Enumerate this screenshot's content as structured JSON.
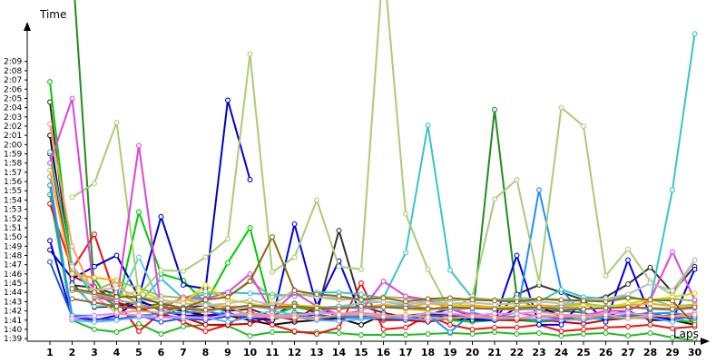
{
  "chart_data": {
    "type": "line",
    "title": "",
    "xlabel": "Laps",
    "ylabel": "Time",
    "x": [
      1,
      2,
      3,
      4,
      5,
      6,
      7,
      8,
      9,
      10,
      11,
      12,
      13,
      14,
      15,
      16,
      17,
      18,
      19,
      20,
      21,
      22,
      23,
      24,
      25,
      26,
      27,
      28,
      29,
      30
    ],
    "x_ticks": [
      "1",
      "2",
      "3",
      "4",
      "5",
      "6",
      "7",
      "8",
      "9",
      "10",
      "11",
      "12",
      "13",
      "14",
      "15",
      "16",
      "17",
      "18",
      "19",
      "20",
      "21",
      "22",
      "23",
      "24",
      "25",
      "26",
      "27",
      "28",
      "29",
      "30"
    ],
    "y_unit": "seconds",
    "ylim": [
      98.5,
      132
    ],
    "y_ticks": [
      {
        "v": 99,
        "label": "1:39"
      },
      {
        "v": 100,
        "label": "1:40"
      },
      {
        "v": 101,
        "label": "1:41"
      },
      {
        "v": 102,
        "label": "1:42"
      },
      {
        "v": 103,
        "label": "1:43"
      },
      {
        "v": 104,
        "label": "1:44"
      },
      {
        "v": 105,
        "label": "1:45"
      },
      {
        "v": 106,
        "label": "1:46"
      },
      {
        "v": 107,
        "label": "1:47"
      },
      {
        "v": 108,
        "label": "1:48"
      },
      {
        "v": 109,
        "label": "1:49"
      },
      {
        "v": 110,
        "label": "1:50"
      },
      {
        "v": 111,
        "label": "1:51"
      },
      {
        "v": 112,
        "label": "1:52"
      },
      {
        "v": 113,
        "label": "1:53"
      },
      {
        "v": 114,
        "label": "1:54"
      },
      {
        "v": 115,
        "label": "1:55"
      },
      {
        "v": 116,
        "label": "1:56"
      },
      {
        "v": 117,
        "label": "1:57"
      },
      {
        "v": 118,
        "label": "1:58"
      },
      {
        "v": 119,
        "label": "1:59"
      },
      {
        "v": 120,
        "label": "2:00"
      },
      {
        "v": 121,
        "label": "2:01"
      },
      {
        "v": 122,
        "label": "2:02"
      },
      {
        "v": 123,
        "label": "2:03"
      },
      {
        "v": 124,
        "label": "2:04"
      },
      {
        "v": 125,
        "label": "2:05"
      },
      {
        "v": 126,
        "label": "2:06"
      },
      {
        "v": 127,
        "label": "2:07"
      },
      {
        "v": 128,
        "label": "2:08"
      },
      {
        "v": 129,
        "label": "2:09"
      }
    ],
    "grid": false,
    "legend": "none",
    "series": [
      {
        "color": "#228b22",
        "values": [
          null,
          140,
          104,
          102.5,
          102.3,
          102.8,
          101.2,
          102,
          102.4,
          101.5,
          101,
          101.8,
          101.6,
          101.2,
          101.5,
          101.3,
          101.2,
          101.7,
          101.5,
          101,
          123.8,
          103.5,
          102,
          102,
          101.8,
          101,
          101.2,
          101.3,
          101.6,
          101.5
        ]
      },
      {
        "color": "#333333",
        "values": [
          124.6,
          104.8,
          104.5,
          103.8,
          103.4,
          102.8,
          102.3,
          102.6,
          102,
          102.2,
          101.4,
          102.8,
          101.7,
          110.7,
          102.5,
          101.8,
          101.3,
          101.6,
          102.2,
          101.5,
          101.2,
          103.8,
          104.8,
          104,
          103.2,
          103.5,
          104.9,
          106.7,
          104,
          106.8
        ]
      },
      {
        "color": "#111111",
        "values": [
          121,
          105,
          102.4,
          102.5,
          103,
          102.3,
          102,
          101.5,
          101.5,
          101,
          100.5,
          100.8,
          101,
          101.2,
          100.5,
          101.6,
          101.3,
          101.8,
          101,
          101.1,
          101,
          102.3,
          102.5,
          101.4,
          101,
          101.5,
          102,
          101,
          101,
          100.5
        ]
      },
      {
        "color": "#00cc00",
        "values": [
          126.8,
          106.2,
          105.5,
          102,
          112.7,
          106,
          105.3,
          102.8,
          107.2,
          111,
          101.5,
          102.4,
          102,
          101.6,
          101.3,
          101,
          101.2,
          101.6,
          101,
          100.8,
          101,
          101,
          100.8,
          101,
          101.2,
          101.1,
          101.5,
          101.4,
          101,
          100.8
        ]
      },
      {
        "color": "#22bb22",
        "values": [
          114.6,
          101,
          100,
          99.7,
          100.6,
          99.5,
          100.3,
          100.5,
          100.4,
          99.3,
          99.7,
          99.7,
          99.7,
          99.6,
          99.4,
          99.4,
          99.4,
          99.5,
          99.6,
          99.5,
          99.7,
          99.5,
          99.6,
          99.3,
          99.5,
          99.6,
          99.3,
          99.6,
          99.1,
          98.8
        ]
      },
      {
        "color": "#ee1111",
        "values": [
          113.6,
          106.5,
          110.3,
          103.2,
          99.8,
          101.8,
          100.8,
          99.8,
          100.5,
          102,
          100.5,
          99.8,
          99.5,
          100.2,
          105,
          100,
          100.2,
          101.5,
          100.5,
          100,
          100.2,
          100.2,
          100.5,
          99.8,
          100,
          100.2,
          100.3,
          100.5,
          100.1,
          100.3
        ]
      },
      {
        "color": "#cc0000",
        "values": [
          119,
          105.8,
          104.6,
          102.9,
          102.3,
          101.5,
          101.3,
          100.5,
          100.5,
          100.6,
          101.5,
          101,
          102.5,
          101.3,
          101.3,
          101,
          101,
          100.8,
          101.2,
          101.5,
          101,
          101,
          101.1,
          100.8,
          100.6,
          101,
          101.3,
          101.2,
          101.2,
          101.3
        ]
      },
      {
        "color": "#0000cc",
        "values": [
          108.6,
          105.5,
          106.8,
          108,
          103.5,
          112.2,
          104.8,
          104.4,
          124.8,
          116.2,
          null,
          null,
          null,
          null,
          null,
          null,
          null,
          null,
          null,
          null,
          null,
          null,
          null,
          null,
          null,
          null,
          null,
          null,
          null,
          null
        ]
      },
      {
        "color": "#0000ee",
        "values": [
          109.6,
          101.3,
          101,
          101.5,
          103.2,
          102,
          101.5,
          101.5,
          101.8,
          101.2,
          101,
          111.4,
          102.5,
          107.4,
          101.5,
          101.2,
          101.5,
          101.7,
          101.5,
          101,
          101,
          108,
          100.5,
          100.5,
          103.2,
          100.8,
          107.5,
          101.5,
          101,
          106.5
        ]
      },
      {
        "color": "#2255cc",
        "values": [
          107.3,
          101.4,
          101.1,
          101.1,
          101.5,
          100.8,
          101.2,
          101,
          101.4,
          101.6,
          101.3,
          101.2,
          101.6,
          101.3,
          101.3,
          101.3,
          101,
          101.5,
          101.5,
          101.3,
          101.3,
          101.2,
          101,
          101.2,
          101,
          101.4,
          101.5,
          101.8,
          101.2,
          101.2
        ]
      },
      {
        "color": "#66aaff",
        "values": [
          116.5,
          101,
          100.8,
          101,
          101.3,
          101.3,
          101.2,
          101.3,
          100.8,
          101.3,
          101.4,
          101.3,
          101,
          100.9,
          101.1,
          101.3,
          101.2,
          101,
          101.2,
          101.4,
          101.1,
          101.2,
          101.1,
          101,
          101.1,
          101.3,
          101.2,
          101.3,
          100.8,
          101.5
        ]
      },
      {
        "color": "#1e90ff",
        "values": [
          115.6,
          101.5,
          101.5,
          101.7,
          101.5,
          101.7,
          101.8,
          102,
          101.5,
          101.7,
          101.5,
          101.6,
          101.2,
          101.4,
          101.3,
          101.5,
          101.3,
          101.6,
          99.7,
          101.8,
          101.3,
          101.4,
          115.1,
          104.3,
          101.6,
          101.3,
          101.6,
          101.7,
          101.8,
          101.4
        ]
      },
      {
        "color": "#3ac4c4",
        "values": [
          119.2,
          107,
          103.4,
          104,
          102.8,
          105.5,
          103.3,
          103.8,
          104,
          103.9,
          103.8,
          103.6,
          104,
          104,
          103.8,
          103.4,
          108.3,
          122.1,
          106.4,
          103.4,
          103.2,
          103.2,
          103,
          104.3,
          103.5,
          103.3,
          103.6,
          103,
          115.1,
          132
        ]
      },
      {
        "color": "#66cccc",
        "values": [
          null,
          104.8,
          102.5,
          102.6,
          107.8,
          102.7,
          103.3,
          103.1,
          101.6,
          101.5,
          102,
          101.6,
          101.7,
          102.5,
          102.8,
          103,
          102.6,
          103.2,
          102.7,
          102.3,
          102.4,
          102.2,
          102.1,
          102.7,
          102.8,
          102.5,
          102.7,
          103.3,
          102.5,
          102.7
        ]
      },
      {
        "color": "#aacc77",
        "values": [
          null,
          114.3,
          115.8,
          122.4,
          103.7,
          106.4,
          106.3,
          107.8,
          109.8,
          129.8,
          106.2,
          107.8,
          114,
          106.8,
          106.5,
          140,
          112.5,
          106.5,
          102,
          103.6,
          114.1,
          116.2,
          105.1,
          124,
          122,
          105.8,
          108.7,
          105.2,
          103.7,
          107.5
        ]
      },
      {
        "color": "#99bb66",
        "values": [
          null,
          106.5,
          104.2,
          105.2,
          104.5,
          103.6,
          103.4,
          104.1,
          103.5,
          105.3,
          103.5,
          103.9,
          103.5,
          103.2,
          103.3,
          103.5,
          103.4,
          103.2,
          103.1,
          103.3,
          103.2,
          103.4,
          103.3,
          103.1,
          103.2,
          103.1,
          103.4,
          103.2,
          103.3,
          103.1
        ]
      },
      {
        "color": "#dd44dd",
        "values": [
          118,
          125,
          103.5,
          103,
          119.9,
          102.2,
          103.5,
          103.3,
          104,
          106,
          101.8,
          104,
          102.5,
          101.6,
          102,
          105.2,
          103.6,
          103.2,
          102.2,
          101.6,
          101.3,
          101.8,
          101.4,
          101.3,
          101.5,
          102,
          102,
          103.2,
          108.4,
          103.2
        ]
      },
      {
        "color": "#ee88ee",
        "values": [
          null,
          101.2,
          101.5,
          101.7,
          101.5,
          101.3,
          101.4,
          101.2,
          101.6,
          101.7,
          101.5,
          101.5,
          101.8,
          101.7,
          101.8,
          101.6,
          101.3,
          101.8,
          101.7,
          101.5,
          101.7,
          101.7,
          101.9,
          101.6,
          101.5,
          101.7,
          101.8,
          101.5,
          101.4,
          101.8
        ]
      },
      {
        "color": "#ff9966",
        "values": [
          122.2,
          109,
          103.6,
          101.8,
          102,
          101.8,
          102.3,
          101.8,
          102.5,
          101.5,
          101.3,
          101.3,
          101.2,
          101.6,
          101.6,
          101.4,
          101.6,
          101.3,
          101.2,
          101.4,
          101.3,
          101.2,
          101.5,
          101.4,
          101.3,
          101.6,
          101.2,
          101.5,
          101.4,
          101.6
        ]
      },
      {
        "color": "#ffaa00",
        "values": [
          117.2,
          106,
          105.6,
          105.3,
          102.3,
          102.6,
          103.3,
          102.6,
          102.5,
          102.4,
          102.8,
          102.6,
          102.3,
          102.5,
          102.3,
          102.7,
          102.4,
          102.8,
          102.6,
          102.6,
          102.4,
          102.5,
          102.6,
          102.5,
          102.7,
          102.4,
          102.6,
          102.8,
          102.5,
          102.6
        ]
      },
      {
        "color": "#dddd00",
        "values": [
          null,
          104.4,
          103.9,
          103.4,
          104.2,
          103.2,
          102.8,
          104.8,
          103.2,
          102.8,
          102.4,
          102.6,
          102.5,
          102.3,
          102.5,
          102.4,
          102.2,
          102,
          102.6,
          102.4,
          102.3,
          102.5,
          102.4,
          102.3,
          102.6,
          102.4,
          102.8,
          103.2,
          103.5,
          103.9
        ]
      },
      {
        "color": "#bbbbbb",
        "values": [
          null,
          106.8,
          104.2,
          104.5,
          103.5,
          103.2,
          102.8,
          102.6,
          102.8,
          103.2,
          102.6,
          104.3,
          103.5,
          103.4,
          103.1,
          103,
          102.8,
          102.9,
          102.8,
          102.9,
          102.7,
          102.8,
          103,
          102.8,
          103.2,
          103.3,
          103.8,
          105,
          104.2,
          107.5
        ]
      },
      {
        "color": "#999999",
        "values": [
          null,
          104.2,
          103.8,
          103.2,
          102.7,
          102.2,
          102.4,
          102.1,
          102.3,
          102.5,
          102.2,
          102.4,
          102.3,
          102.5,
          102.2,
          102.4,
          102.6,
          102.3,
          102.1,
          102.3,
          102.2,
          102.1,
          102.3,
          102.4,
          102.2,
          102.3,
          102.4,
          102.2,
          102.1,
          102.3
        ]
      },
      {
        "color": "#8b6914",
        "values": [
          null,
          104.4,
          104,
          103.5,
          103.5,
          102.8,
          102.3,
          103.2,
          103.5,
          105.2,
          110,
          104.2,
          103.8,
          103.6,
          103.2,
          103.4,
          103,
          103.3,
          103.4,
          103.2,
          103.1,
          103,
          103.3,
          103.2,
          103.1,
          103,
          103.4,
          103.2,
          103.1,
          100.5
        ]
      },
      {
        "color": "#886644",
        "values": [
          null,
          103.3,
          102.9,
          102.5,
          102.2,
          102.4,
          102.2,
          102.1,
          102.3,
          102.6,
          102.4,
          102.5,
          102.3,
          102.2,
          102.5,
          102.4,
          102.3,
          102.2,
          102.4,
          102.3,
          102.2,
          102.3,
          102.4,
          102.1,
          102.2,
          102.3,
          102.4,
          102.3,
          102.2,
          102.4
        ]
      }
    ]
  }
}
